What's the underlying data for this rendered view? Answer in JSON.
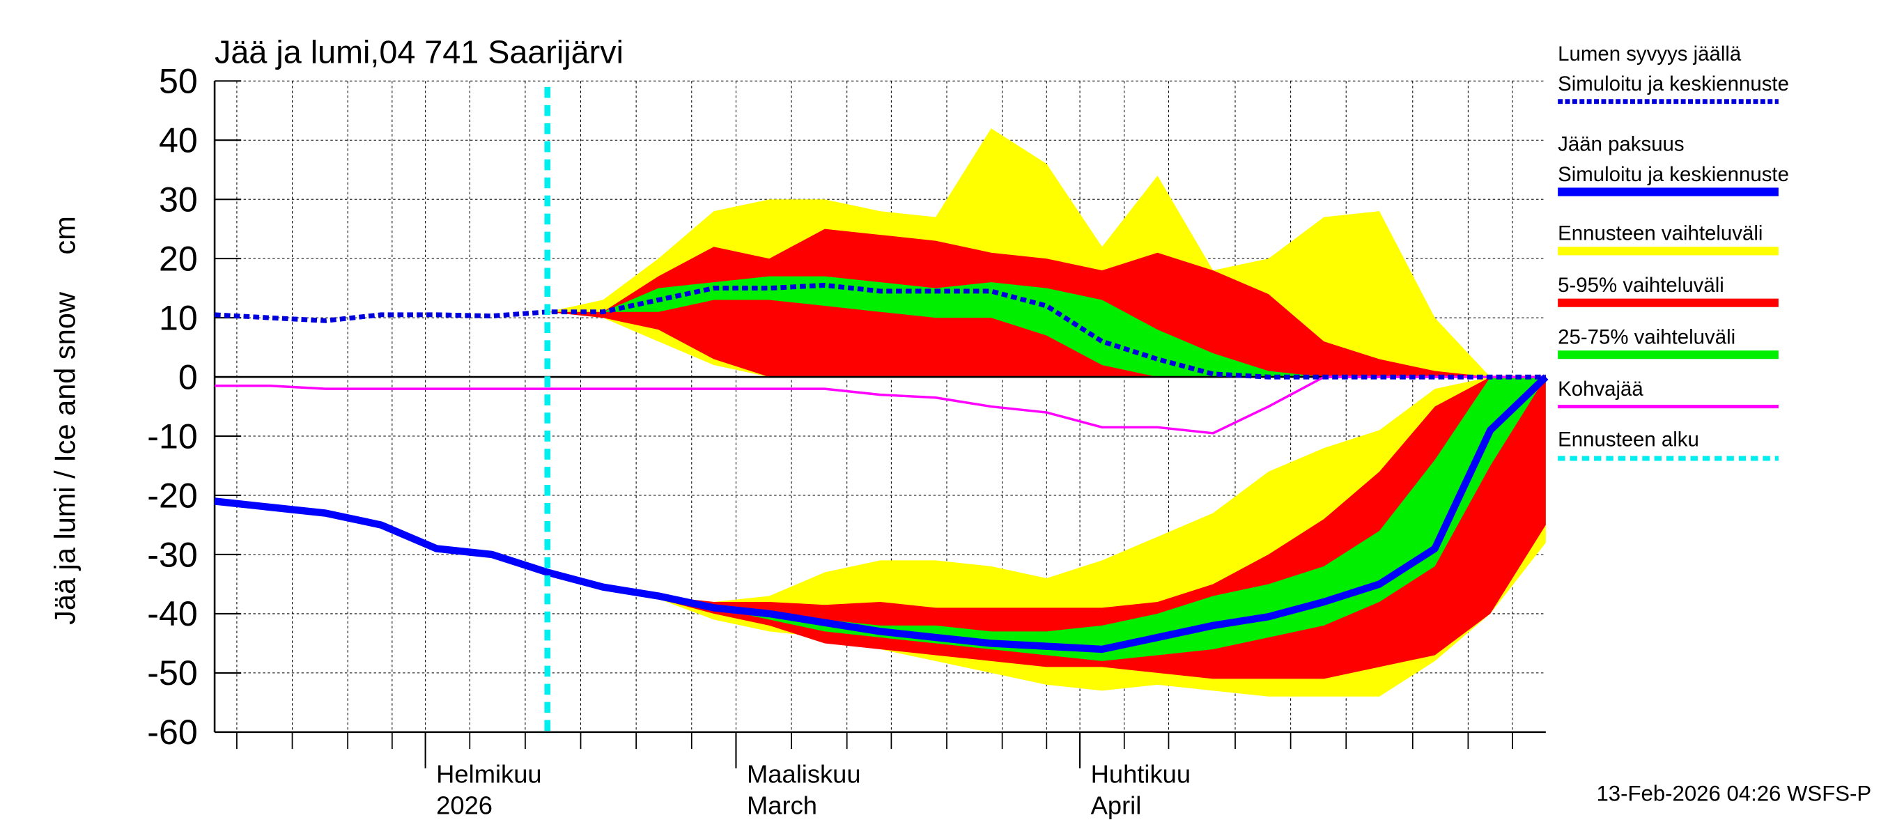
{
  "chart_data": {
    "type": "line",
    "title": "Jää ja lumi,04 741 Saarijärvi",
    "y_label": "Jää ja lumi / Ice and snow",
    "y_unit": "cm",
    "footer": "13-Feb-2026 04:26 WSFS-P",
    "x": [
      13,
      18,
      23,
      28,
      33,
      38,
      43,
      48,
      53,
      58,
      63,
      68,
      73,
      78,
      83,
      88,
      93,
      98,
      103,
      108,
      113,
      118,
      123,
      128,
      133
    ],
    "xlim": [
      13,
      133
    ],
    "xticks": [
      {
        "value": 32,
        "label": [
          "Helmikuu",
          "2026"
        ]
      },
      {
        "value": 60,
        "label": [
          "Maaliskuu",
          "March"
        ]
      },
      {
        "value": 91,
        "label": [
          "Huhtikuu",
          "April"
        ]
      }
    ],
    "xgrid": [
      15,
      20,
      25,
      29,
      36,
      41,
      46,
      51,
      56,
      65,
      70,
      74,
      79,
      84,
      88,
      95,
      99,
      105,
      110,
      115,
      121,
      126,
      130
    ],
    "ylim": [
      -60,
      50
    ],
    "yticks": [
      -60,
      -50,
      -40,
      -30,
      -20,
      -10,
      0,
      10,
      20,
      30,
      40,
      50
    ],
    "grid": true,
    "series": [
      {
        "name": [
          "Lumen syvyys jäällä",
          "Simuloitu ja keskiennuste"
        ],
        "color": "#0000dd",
        "dashed": true,
        "values": [
          10.5,
          10,
          9.5,
          10.5,
          10.5,
          10.3,
          11,
          11,
          13,
          15,
          15,
          15.5,
          14.5,
          14.5,
          14.5,
          12,
          6,
          3,
          0.5,
          0,
          0,
          0,
          0,
          0,
          0
        ]
      },
      {
        "name": [
          "Jään paksuus",
          "Simuloitu ja keskiennuste"
        ],
        "color": "#0000ff",
        "dashed": false,
        "values": [
          -21,
          -22,
          -23,
          -25,
          -29,
          -30,
          -33,
          -35.5,
          -37,
          -39,
          -40,
          -41.5,
          -43,
          -44,
          -45,
          -45.5,
          -46,
          -44,
          -42,
          -40.5,
          -38,
          -35,
          -29,
          -9,
          0
        ]
      },
      {
        "name": [
          "Kohvajää"
        ],
        "color": "#ff00ff",
        "dashed": false,
        "thin": true,
        "values": [
          -1.5,
          -1.5,
          -2,
          -2,
          -2,
          -2,
          -2,
          -2,
          -2,
          -2,
          -2,
          -2,
          -3,
          -3.5,
          -5,
          -6,
          -8.5,
          -8.5,
          -9.5,
          -5,
          0,
          0,
          0,
          0,
          0
        ]
      }
    ],
    "bands": [
      {
        "name": "Ennusteen vaihteluväli",
        "color": "#ffff00",
        "snow_high": [
          null,
          null,
          null,
          null,
          null,
          null,
          11,
          13,
          20,
          28,
          30,
          30,
          28,
          27,
          42,
          36,
          22,
          34,
          18,
          20,
          27,
          28,
          10,
          0,
          0
        ],
        "snow_low": [
          null,
          null,
          null,
          null,
          null,
          null,
          11,
          10,
          6,
          2,
          0,
          0,
          0,
          0,
          0,
          0,
          0,
          0,
          0,
          0,
          0,
          0,
          0,
          0,
          0
        ],
        "ice_high": [
          null,
          null,
          null,
          null,
          null,
          null,
          -33,
          -35,
          -37,
          -38,
          -37,
          -33,
          -31,
          -31,
          -32,
          -34,
          -31,
          -27,
          -23,
          -16,
          -12,
          -9,
          -2,
          0,
          0
        ],
        "ice_low": [
          null,
          null,
          null,
          null,
          null,
          null,
          -33,
          -35.5,
          -37.5,
          -41,
          -43,
          -44,
          -46,
          -48,
          -50,
          -52,
          -53,
          -52,
          -53,
          -54,
          -54,
          -54,
          -48,
          -40,
          -28
        ]
      },
      {
        "name": "5-95% vaihteluväli",
        "color": "#ff0000",
        "snow_high": [
          null,
          null,
          null,
          null,
          null,
          null,
          11,
          11,
          17,
          22,
          20,
          25,
          24,
          23,
          21,
          20,
          18,
          21,
          18,
          14,
          6,
          3,
          1,
          0,
          0
        ],
        "snow_low": [
          null,
          null,
          null,
          null,
          null,
          null,
          11,
          10,
          8,
          3,
          0,
          0,
          0,
          0,
          0,
          0,
          0,
          0,
          0,
          0,
          0,
          0,
          0,
          0,
          0
        ],
        "ice_high": [
          null,
          null,
          null,
          null,
          null,
          null,
          -33,
          -35,
          -37,
          -38,
          -38,
          -38.5,
          -38,
          -39,
          -39,
          -39,
          -39,
          -38,
          -35,
          -30,
          -24,
          -16,
          -5,
          0,
          0
        ],
        "ice_low": [
          null,
          null,
          null,
          null,
          null,
          null,
          -33,
          -35.5,
          -37.5,
          -40,
          -42,
          -45,
          -46,
          -47,
          -48,
          -49,
          -49,
          -50,
          -51,
          -51,
          -51,
          -49,
          -47,
          -40,
          -25
        ]
      },
      {
        "name": "25-75% vaihteluväli",
        "color": "#00ee00",
        "snow_high": [
          null,
          null,
          null,
          null,
          null,
          null,
          11,
          11,
          15,
          16,
          17,
          17,
          16,
          15,
          16,
          15,
          13,
          8,
          4,
          1,
          0,
          0,
          0,
          0,
          0
        ],
        "snow_low": [
          null,
          null,
          null,
          null,
          null,
          null,
          11,
          11,
          11,
          13,
          13,
          12,
          11,
          10,
          10,
          7,
          2,
          0,
          0,
          0,
          0,
          0,
          0,
          0,
          0
        ],
        "ice_high": [
          null,
          null,
          null,
          null,
          null,
          null,
          -33,
          -35,
          -37,
          -39,
          -40,
          -41,
          -42,
          -42,
          -43,
          -43,
          -42,
          -40,
          -37,
          -35,
          -32,
          -26,
          -14,
          0,
          0
        ],
        "ice_low": [
          null,
          null,
          null,
          null,
          null,
          null,
          -33,
          -35.5,
          -37,
          -39,
          -41,
          -43,
          -44,
          -45,
          -46,
          -47,
          -48,
          -47,
          -46,
          -44,
          -42,
          -38,
          -32,
          -15,
          0
        ]
      }
    ],
    "forecast_start": {
      "name": "Ennusteen alku",
      "color": "#00eeee",
      "x": 43
    }
  }
}
